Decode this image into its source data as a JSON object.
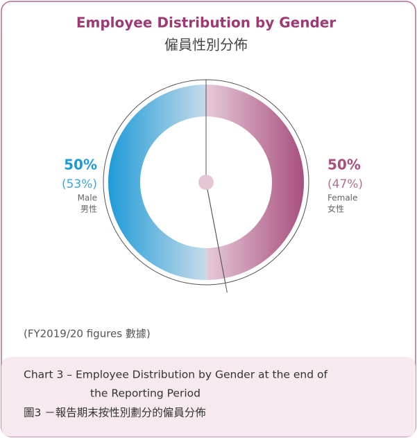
{
  "chart_data": {
    "type": "donut",
    "title": "Employee Distribution by Gender",
    "subtitle": "僱員性別分佈",
    "categories": [
      "Male",
      "Female"
    ],
    "categories_zh": [
      "男性",
      "女性"
    ],
    "values": [
      50,
      50
    ],
    "value_labels": [
      "50%",
      "50%"
    ],
    "previous_values": [
      53,
      47
    ],
    "previous_value_labels": [
      "(53%)",
      "(47%)"
    ],
    "colors": [
      "#1e9bd7",
      "#a84f7e"
    ],
    "footnote": "(FY2019/20 figures 數據)",
    "caption": [
      "Chart 3 – Employee Distribution by Gender at the end of",
      "the Reporting Period",
      "圖3 －報告期末按性別劃分的僱員分佈"
    ]
  }
}
